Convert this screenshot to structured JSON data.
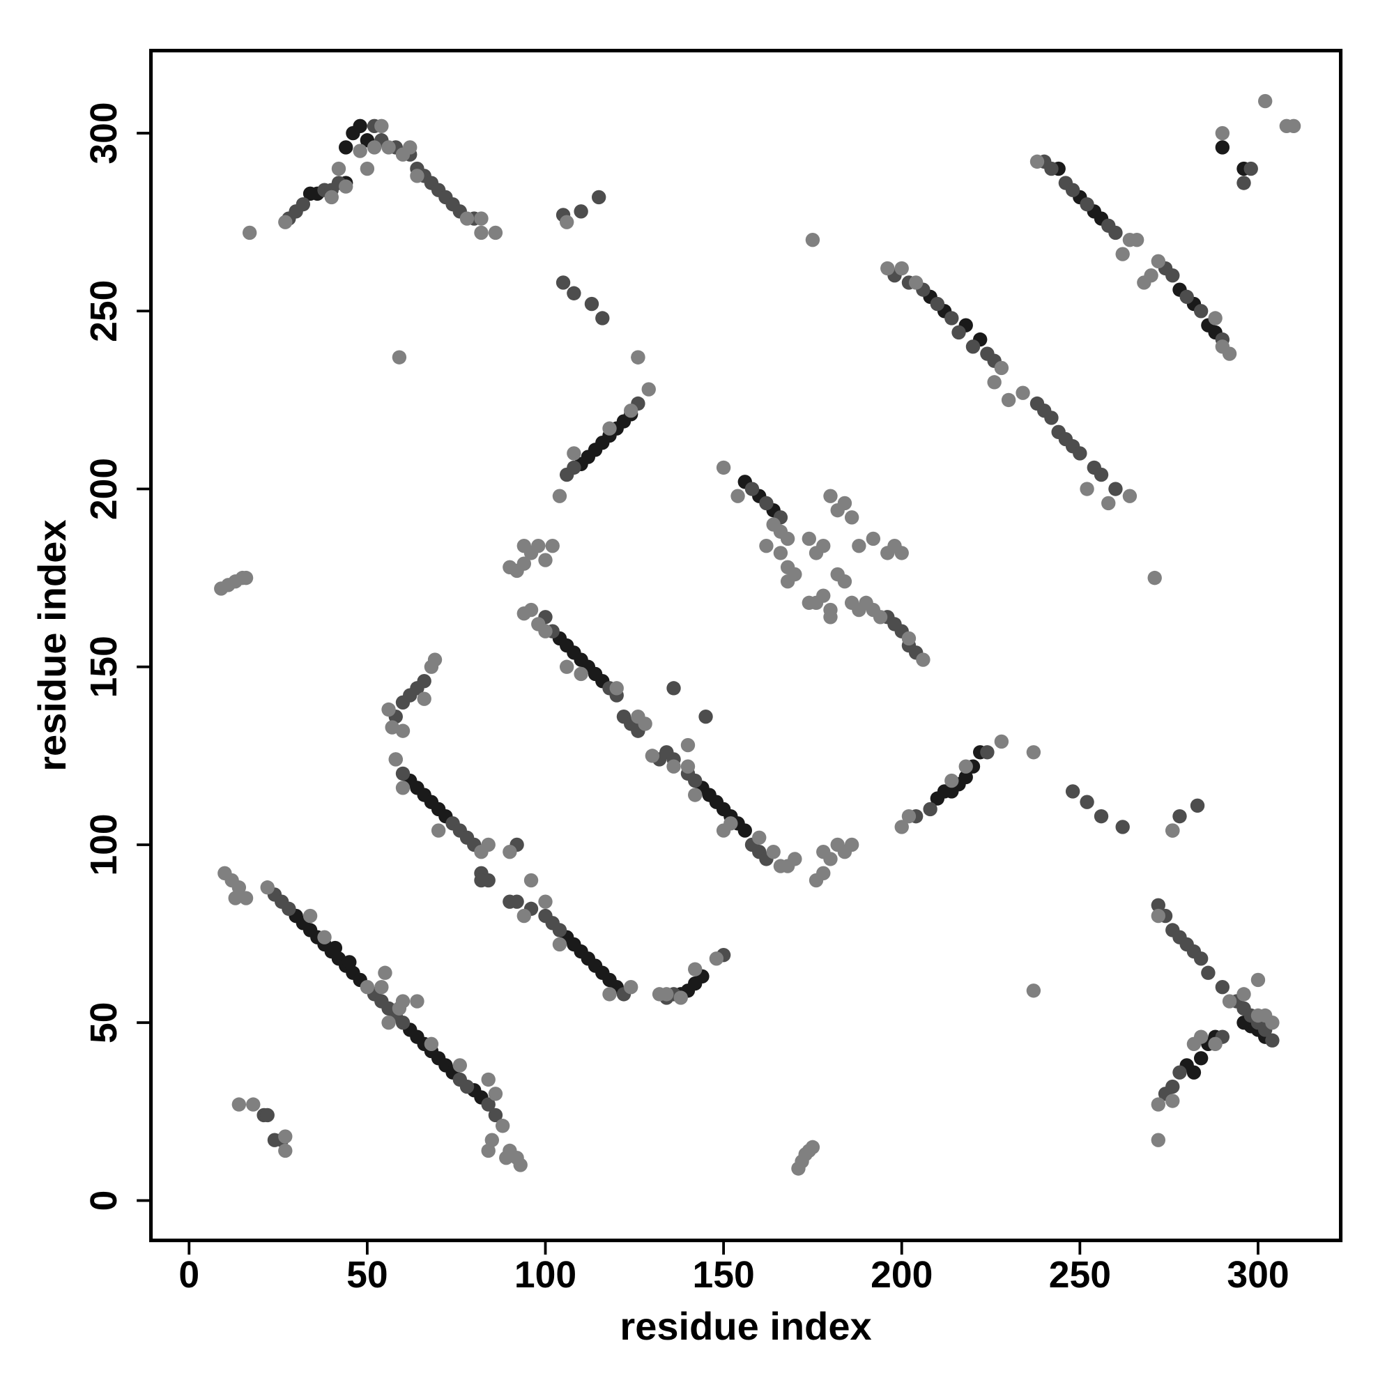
{
  "chart_data": {
    "type": "scatter",
    "xlabel": "residue index",
    "ylabel": "residue index",
    "xlim": [
      -10.7,
      323.2
    ],
    "ylim": [
      -11.2,
      323.2
    ],
    "xticks": [
      0,
      50,
      100,
      150,
      200,
      250,
      300
    ],
    "yticks": [
      0,
      50,
      100,
      150,
      200,
      250,
      300
    ],
    "grid": false,
    "series": [
      {
        "color": "#1a1a1a",
        "x": [
          30,
          32,
          34,
          36,
          38,
          40,
          42,
          44,
          46,
          48,
          41,
          45,
          62,
          64,
          66,
          68,
          70,
          72,
          74,
          80,
          82,
          62,
          64,
          66,
          68,
          70,
          72,
          106,
          108,
          110,
          112,
          114,
          116,
          118,
          120,
          104,
          106,
          108,
          110,
          112,
          114,
          116,
          144,
          146,
          148,
          150,
          152,
          154,
          156,
          110,
          112,
          114,
          116,
          118,
          120,
          122,
          124,
          210,
          212,
          214,
          216,
          218,
          220,
          222,
          138,
          140,
          142,
          144,
          44,
          46,
          48,
          50,
          34,
          36,
          44,
          244,
          250,
          254,
          256,
          278,
          282,
          286,
          288,
          300,
          302,
          298,
          296,
          280,
          282,
          284,
          286,
          288,
          208,
          212,
          218,
          222,
          156,
          160,
          164,
          290,
          296
        ],
        "values": [
          80,
          78,
          76,
          74,
          72,
          70,
          68,
          66,
          64,
          62,
          71,
          67,
          48,
          46,
          44,
          42,
          40,
          38,
          36,
          31,
          29,
          118,
          116,
          114,
          112,
          110,
          108,
          74,
          72,
          70,
          68,
          66,
          64,
          62,
          60,
          158,
          156,
          154,
          152,
          150,
          148,
          146,
          116,
          114,
          112,
          110,
          108,
          106,
          104,
          207,
          209,
          211,
          213,
          215,
          217,
          219,
          221,
          113,
          115,
          115,
          117,
          119,
          122,
          126,
          58,
          59,
          61,
          63,
          296,
          300,
          302,
          298,
          283,
          283,
          286,
          290,
          282,
          278,
          276,
          256,
          252,
          246,
          244,
          48,
          46,
          49,
          50,
          38,
          36,
          40,
          44,
          46,
          254,
          250,
          246,
          242,
          202,
          198,
          194,
          296,
          290
        ]
      },
      {
        "color": "#4d4d4d",
        "x": [
          24,
          26,
          28,
          52,
          54,
          56,
          58,
          60,
          76,
          78,
          84,
          86,
          60,
          74,
          76,
          78,
          80,
          82,
          84,
          96,
          100,
          102,
          104,
          122,
          100,
          102,
          118,
          120,
          122,
          124,
          126,
          132,
          134,
          136,
          140,
          142,
          158,
          160,
          162,
          158,
          162,
          166,
          196,
          198,
          200,
          202,
          204,
          198,
          202,
          206,
          210,
          214,
          216,
          220,
          224,
          226,
          238,
          240,
          242,
          244,
          246,
          248,
          250,
          254,
          256,
          260,
          240,
          242,
          246,
          248,
          252,
          258,
          260,
          274,
          276,
          280,
          284,
          290,
          274,
          276,
          278,
          280,
          282,
          284,
          286,
          290,
          294,
          296,
          298,
          300,
          302,
          304,
          274,
          276,
          278,
          290,
          106,
          108,
          126,
          204,
          208,
          224,
          28,
          30,
          32,
          38,
          40,
          42,
          52,
          54,
          58,
          62,
          64,
          66,
          68,
          70,
          72,
          74,
          76,
          80,
          58,
          60,
          62,
          64,
          66,
          134,
          136,
          150,
          21,
          22,
          24,
          26,
          136,
          145,
          90,
          92,
          82,
          92,
          296,
          298,
          272,
          276,
          278,
          283,
          248,
          252,
          256,
          262,
          105,
          110,
          115,
          108,
          113,
          116,
          105
        ],
        "values": [
          86,
          84,
          82,
          58,
          56,
          54,
          52,
          50,
          34,
          32,
          27,
          24,
          120,
          106,
          104,
          102,
          100,
          92,
          90,
          82,
          80,
          78,
          76,
          58,
          164,
          160,
          144,
          142,
          136,
          134,
          132,
          124,
          126,
          124,
          120,
          118,
          100,
          98,
          96,
          200,
          196,
          192,
          164,
          162,
          160,
          156,
          154,
          260,
          258,
          256,
          252,
          248,
          244,
          240,
          238,
          236,
          224,
          222,
          220,
          216,
          214,
          212,
          210,
          206,
          204,
          200,
          292,
          290,
          286,
          284,
          280,
          274,
          272,
          262,
          260,
          254,
          250,
          242,
          80,
          76,
          74,
          72,
          70,
          68,
          64,
          60,
          56,
          54,
          52,
          50,
          48,
          45,
          30,
          32,
          36,
          46,
          204,
          206,
          224,
          108,
          110,
          126,
          276,
          278,
          280,
          284,
          284,
          286,
          302,
          298,
          296,
          294,
          290,
          288,
          286,
          284,
          282,
          280,
          278,
          276,
          136,
          140,
          142,
          144,
          146,
          57,
          58,
          69,
          24,
          24,
          17,
          17,
          144,
          136,
          84,
          84,
          90,
          100,
          286,
          290,
          83,
          104,
          108,
          111,
          115,
          112,
          108,
          105,
          277,
          278,
          282,
          255,
          252,
          248,
          258
        ]
      },
      {
        "color": "#808080",
        "x": [
          10,
          12,
          14,
          16,
          13,
          22,
          34,
          38,
          50,
          54,
          55,
          56,
          59,
          60,
          64,
          68,
          76,
          84,
          86,
          85,
          84,
          88,
          90,
          92,
          93,
          89,
          58,
          60,
          70,
          82,
          84,
          90,
          94,
          96,
          100,
          104,
          118,
          124,
          94,
          96,
          98,
          100,
          106,
          110,
          120,
          126,
          128,
          140,
          142,
          150,
          152,
          160,
          164,
          166,
          168,
          170,
          90,
          92,
          94,
          96,
          98,
          100,
          102,
          94,
          9,
          11,
          13,
          15,
          16,
          150,
          154,
          164,
          166,
          168,
          166,
          168,
          170,
          168,
          162,
          174,
          176,
          178,
          180,
          182,
          184,
          186,
          182,
          184,
          186,
          188,
          190,
          192,
          194,
          188,
          192,
          196,
          198,
          200,
          174,
          176,
          178,
          180,
          180,
          206,
          202,
          176,
          178,
          180,
          182,
          184,
          186,
          178,
          171,
          172,
          173,
          174,
          175,
          14,
          18,
          27,
          27,
          17,
          196,
          200,
          204,
          228,
          226,
          230,
          234,
          252,
          258,
          264,
          238,
          262,
          264,
          266,
          268,
          270,
          272,
          288,
          292,
          290,
          272,
          272,
          272,
          276,
          282,
          284,
          288,
          292,
          296,
          300,
          302,
          304,
          300,
          104,
          108,
          118,
          124,
          126,
          129,
          200,
          202,
          214,
          218,
          228,
          132,
          134,
          138,
          142,
          148,
          56,
          57,
          60,
          58,
          68,
          69,
          66,
          27,
          40,
          42,
          48,
          50,
          52,
          54,
          56,
          60,
          62,
          64,
          78,
          82,
          82,
          86,
          44,
          59,
          175,
          106,
          126,
          237,
          237,
          271,
          290,
          302,
          308,
          310,
          276,
          136,
          140,
          130
        ],
        "values": [
          92,
          90,
          88,
          85,
          85,
          88,
          80,
          74,
          60,
          60,
          64,
          50,
          54,
          56,
          56,
          44,
          38,
          34,
          30,
          17,
          14,
          21,
          14,
          12,
          10,
          12,
          124,
          116,
          104,
          98,
          100,
          98,
          80,
          90,
          84,
          72,
          58,
          60,
          165,
          166,
          162,
          160,
          150,
          148,
          144,
          136,
          134,
          122,
          114,
          104,
          106,
          102,
          98,
          94,
          94,
          96,
          178,
          177,
          179,
          182,
          184,
          180,
          184,
          184,
          172,
          173,
          174,
          175,
          175,
          206,
          198,
          190,
          188,
          186,
          182,
          178,
          176,
          174,
          184,
          186,
          182,
          184,
          198,
          194,
          196,
          192,
          176,
          174,
          168,
          166,
          168,
          166,
          164,
          184,
          186,
          182,
          184,
          182,
          168,
          168,
          170,
          166,
          164,
          152,
          158,
          90,
          92,
          96,
          100,
          98,
          100,
          98,
          9,
          11,
          13,
          14,
          15,
          27,
          27,
          14,
          18,
          272,
          262,
          262,
          258,
          234,
          230,
          225,
          227,
          200,
          196,
          198,
          292,
          266,
          270,
          270,
          258,
          260,
          264,
          248,
          238,
          240,
          80,
          17,
          27,
          28,
          44,
          46,
          44,
          56,
          58,
          52,
          52,
          50,
          62,
          198,
          210,
          217,
          222,
          237,
          228,
          105,
          108,
          118,
          122,
          129,
          58,
          58,
          57,
          65,
          68,
          138,
          133,
          132,
          124,
          150,
          152,
          141,
          275,
          282,
          290,
          295,
          290,
          296,
          302,
          296,
          294,
          296,
          288,
          276,
          276,
          272,
          272,
          285,
          237,
          270,
          275,
          237,
          126,
          59,
          175,
          300,
          309,
          302,
          302,
          104,
          122,
          128,
          125
        ]
      }
    ]
  }
}
